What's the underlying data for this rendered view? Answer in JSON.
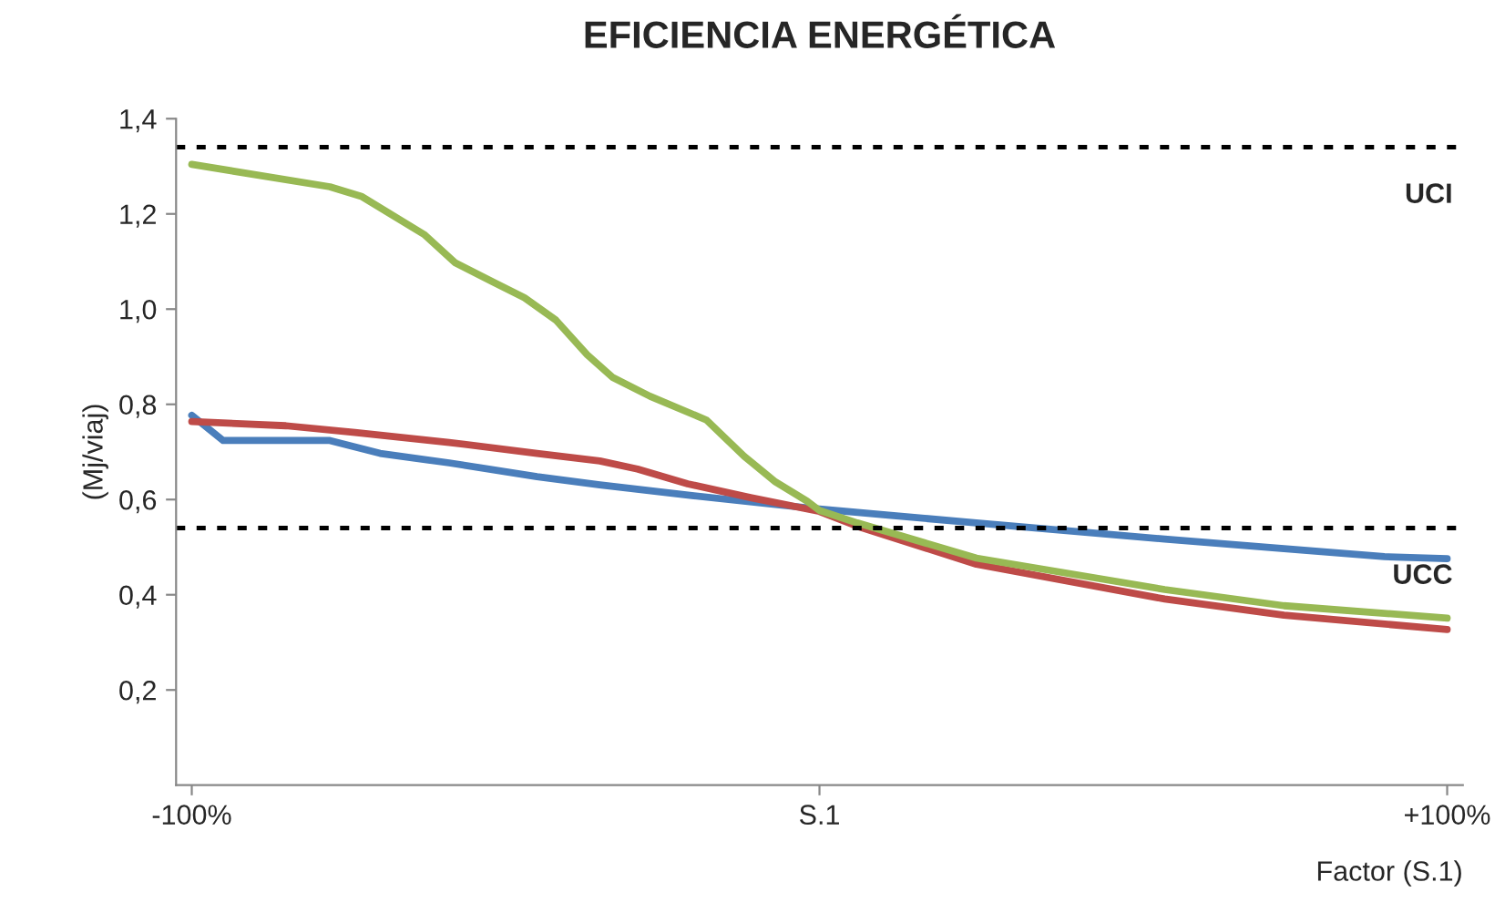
{
  "chart_data": {
    "type": "line",
    "title": "EFICIENCIA ENERGÉTICA",
    "xlabel": "Factor (S.1)",
    "ylabel": "(Mj/viaj)",
    "series": [
      {
        "color": "#4a7ebb",
        "x": [
          -100,
          -95,
          -78,
          -70,
          -59,
          -45,
          -35,
          -20,
          -6,
          0,
          11,
          25,
          55,
          74,
          90,
          100
        ],
        "values": [
          0.777,
          0.724,
          0.724,
          0.697,
          0.677,
          0.648,
          0.631,
          0.608,
          0.588,
          0.58,
          0.567,
          0.551,
          0.517,
          0.497,
          0.48,
          0.476
        ]
      },
      {
        "color": "#be4b48",
        "x": [
          -100,
          -85,
          -74,
          -59,
          -45,
          -35,
          -29,
          -21,
          -11,
          0,
          6,
          25,
          55,
          74,
          100
        ],
        "values": [
          0.764,
          0.755,
          0.741,
          0.72,
          0.697,
          0.681,
          0.664,
          0.633,
          0.604,
          0.575,
          0.544,
          0.464,
          0.391,
          0.357,
          0.327
        ]
      },
      {
        "color": "#98b954",
        "x": [
          -100,
          -78,
          -73,
          -63,
          -58,
          -52,
          -47,
          -42,
          -37,
          -33,
          -27,
          -18,
          -12,
          -7,
          -2,
          0,
          6,
          25,
          55,
          74,
          100
        ],
        "values": [
          1.304,
          1.257,
          1.237,
          1.157,
          1.097,
          1.057,
          1.024,
          0.977,
          0.904,
          0.857,
          0.817,
          0.767,
          0.691,
          0.637,
          0.597,
          0.577,
          0.551,
          0.477,
          0.411,
          0.377,
          0.351
        ]
      }
    ],
    "xlim": [
      -102.5,
      102.5
    ],
    "xticks": [
      {
        "value": -100,
        "label": "-100%"
      },
      {
        "value": 0,
        "label": "S.1"
      },
      {
        "value": 100,
        "label": "+100%"
      }
    ],
    "ylim": [
      0,
      1.4
    ],
    "yticks": [
      {
        "value": 0.2,
        "label": "0,2"
      },
      {
        "value": 0.4,
        "label": "0,4"
      },
      {
        "value": 0.6,
        "label": "0,6"
      },
      {
        "value": 0.8,
        "label": "0,8"
      },
      {
        "value": 1.0,
        "label": "1,0"
      },
      {
        "value": 1.2,
        "label": "1,2"
      },
      {
        "value": 1.4,
        "label": "1,4"
      }
    ],
    "ref_lines": [
      {
        "axis": "y",
        "value": 1.34,
        "label": "UCI",
        "color": "#000000",
        "line_style": "dotted"
      },
      {
        "axis": "y",
        "value": 0.54,
        "label": "UCC",
        "color": "#000000",
        "line_style": "dotted"
      }
    ],
    "grid": false,
    "legend": false,
    "marker": "none",
    "line_style": "solid"
  }
}
